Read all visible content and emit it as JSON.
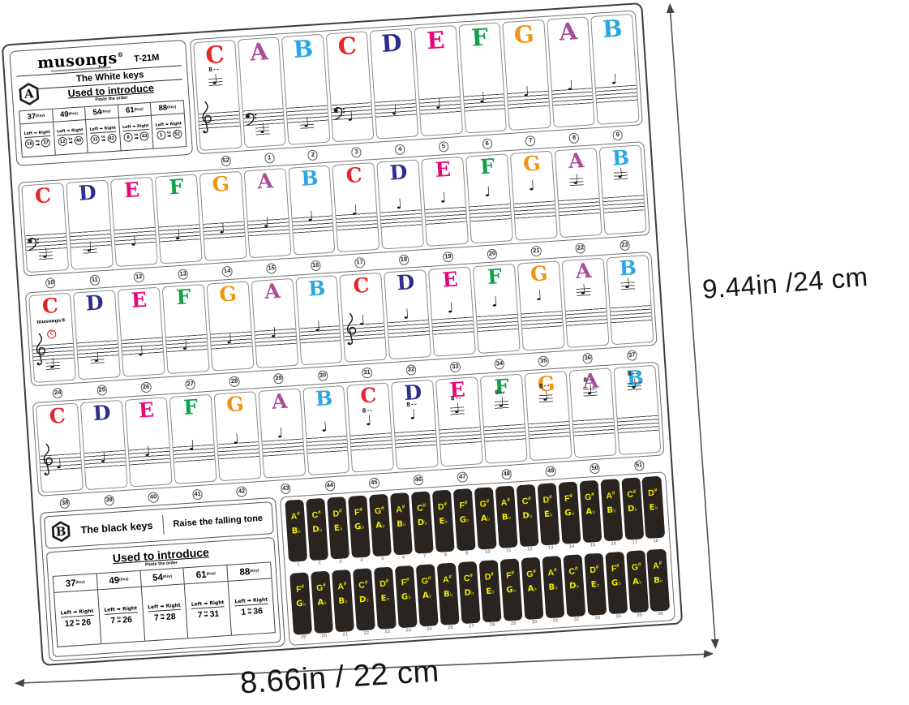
{
  "colors": {
    "C": "#e6252b",
    "D": "#2b2e8c",
    "E": "#e6077e",
    "F": "#10a04a",
    "G": "#f09413",
    "A": "#a84d97",
    "B": "#2da7e0",
    "black_key_bg": "#2a2420",
    "black_key_text": "#ece607",
    "number_grey": "#8d8d8d"
  },
  "glyphs": {
    "note": "♩",
    "ottava": "8--",
    "to": "to",
    "arrow": "➡",
    "flat": "♭"
  },
  "header_box": {
    "brand": "musongs",
    "reg": "®",
    "model": "T-21M",
    "badge": "A",
    "title": "The White keys",
    "intro": "Used to introduce",
    "paste": "Paste the order",
    "direction": "Left ➡ Right",
    "table": [
      {
        "keys": "37",
        "suffix": "(Key)",
        "from": "16",
        "to": "37"
      },
      {
        "keys": "49",
        "suffix": "(Key)",
        "from": "12",
        "to": "40"
      },
      {
        "keys": "54",
        "suffix": "(Key)",
        "from": "11",
        "to": "42"
      },
      {
        "keys": "61",
        "suffix": "(Key)",
        "from": "8",
        "to": "43"
      },
      {
        "keys": "88",
        "suffix": "(Key)",
        "from": "1",
        "to": "52"
      }
    ]
  },
  "cell_brand": {
    "text": "musongs",
    "reg": "®",
    "c": "C"
  },
  "white_rows": [
    {
      "cells": [
        {
          "l": "C",
          "v": 16,
          "clef": "treble",
          "o": true
        },
        {
          "l": "A",
          "v": 0,
          "clef": "bass"
        },
        {
          "l": "B",
          "v": 1
        },
        {
          "l": "C",
          "v": 2,
          "clef": "bass"
        },
        {
          "l": "D",
          "v": 3
        },
        {
          "l": "E",
          "v": 4
        },
        {
          "l": "F",
          "v": 5
        },
        {
          "l": "G",
          "v": 6
        },
        {
          "l": "A",
          "v": 7
        },
        {
          "l": "B",
          "v": 8
        }
      ],
      "nums": [
        "52",
        "1",
        "2",
        "3",
        "4",
        "5",
        "6",
        "7",
        "8",
        "9"
      ]
    },
    {
      "cells": [
        {
          "l": "C",
          "v": 0,
          "clef": "bass"
        },
        {
          "l": "D",
          "v": 1
        },
        {
          "l": "E",
          "v": 2
        },
        {
          "l": "F",
          "v": 3
        },
        {
          "l": "G",
          "v": 4
        },
        {
          "l": "A",
          "v": 5
        },
        {
          "l": "B",
          "v": 6
        },
        {
          "l": "C",
          "v": 7
        },
        {
          "l": "D",
          "v": 8
        },
        {
          "l": "E",
          "v": 9
        },
        {
          "l": "F",
          "v": 10
        },
        {
          "l": "G",
          "v": 11
        },
        {
          "l": "A",
          "v": 12
        },
        {
          "l": "B",
          "v": 13
        }
      ],
      "nums": [
        "10",
        "11",
        "12",
        "13",
        "14",
        "15",
        "16",
        "17",
        "18",
        "19",
        "20",
        "21",
        "22",
        "23"
      ]
    },
    {
      "cells": [
        {
          "l": "C",
          "v": 0,
          "clef": "treble",
          "brand": true
        },
        {
          "l": "D",
          "v": 1
        },
        {
          "l": "E",
          "v": 2
        },
        {
          "l": "F",
          "v": 3
        },
        {
          "l": "G",
          "v": 4
        },
        {
          "l": "A",
          "v": 5
        },
        {
          "l": "B",
          "v": 6
        },
        {
          "l": "C",
          "v": 7,
          "clef": "treble"
        },
        {
          "l": "D",
          "v": 8
        },
        {
          "l": "E",
          "v": 9
        },
        {
          "l": "F",
          "v": 10
        },
        {
          "l": "G",
          "v": 11
        },
        {
          "l": "A",
          "v": 12
        },
        {
          "l": "B",
          "v": 13
        }
      ],
      "nums": [
        "24",
        "25",
        "26",
        "27",
        "28",
        "29",
        "30",
        "31",
        "32",
        "33",
        "34",
        "35",
        "36",
        "37"
      ]
    },
    {
      "cells": [
        {
          "l": "C",
          "v": 3,
          "clef": "treble"
        },
        {
          "l": "D",
          "v": 4
        },
        {
          "l": "E",
          "v": 5
        },
        {
          "l": "F",
          "v": 6
        },
        {
          "l": "G",
          "v": 7
        },
        {
          "l": "A",
          "v": 8
        },
        {
          "l": "B",
          "v": 9
        },
        {
          "l": "C",
          "v": 10,
          "o": true
        },
        {
          "l": "D",
          "v": 11,
          "o": true
        },
        {
          "l": "E",
          "v": 12,
          "o": true
        },
        {
          "l": "F",
          "v": 13,
          "o": true
        },
        {
          "l": "G",
          "v": 14,
          "o": true
        },
        {
          "l": "A",
          "v": 15,
          "o": true
        },
        {
          "l": "B",
          "v": 16,
          "o": true
        }
      ],
      "nums": [
        "38",
        "39",
        "40",
        "41",
        "42",
        "43",
        "44",
        "45",
        "46",
        "47",
        "48",
        "49",
        "50",
        "51"
      ]
    }
  ],
  "black_box": {
    "badge": "B",
    "title_left": "The black keys",
    "title_right": "Raise the falling tone",
    "intro": "Used to introduce",
    "paste": "Paste the order",
    "direction": "Left ➡ Right",
    "table": [
      {
        "keys": "37",
        "suffix": "(Key)",
        "from": "12",
        "to": "26"
      },
      {
        "keys": "49",
        "suffix": "(Key)",
        "from": "7",
        "to": "26"
      },
      {
        "keys": "54",
        "suffix": "(Key)",
        "from": "7",
        "to": "28"
      },
      {
        "keys": "61",
        "suffix": "(Key)",
        "from": "7",
        "to": "31"
      },
      {
        "keys": "88",
        "suffix": "(Key)",
        "from": "1",
        "to": "36"
      }
    ]
  },
  "black_rows": [
    {
      "stickers": [
        {
          "s": "A#",
          "f": "Bb",
          "n": "1"
        },
        {
          "s": "C#",
          "f": "Db",
          "n": "2"
        },
        {
          "s": "D#",
          "f": "Eb",
          "n": "3"
        },
        {
          "s": "F#",
          "f": "Gb",
          "n": "4"
        },
        {
          "s": "G#",
          "f": "Ab",
          "n": "5"
        },
        {
          "s": "A#",
          "f": "Bb",
          "n": "6"
        },
        {
          "s": "C#",
          "f": "Db",
          "n": "7"
        },
        {
          "s": "D#",
          "f": "Eb",
          "n": "8"
        },
        {
          "s": "F#",
          "f": "Gb",
          "n": "9"
        },
        {
          "s": "G#",
          "f": "Ab",
          "n": "10"
        },
        {
          "s": "A#",
          "f": "Bb",
          "n": "11"
        },
        {
          "s": "C#",
          "f": "Db",
          "n": "12"
        },
        {
          "s": "D#",
          "f": "Eb",
          "n": "13"
        },
        {
          "s": "F#",
          "f": "Gb",
          "n": "14"
        },
        {
          "s": "G#",
          "f": "Ab",
          "n": "15"
        },
        {
          "s": "A#",
          "f": "Bb",
          "n": "16"
        },
        {
          "s": "C#",
          "f": "Db",
          "n": "17"
        },
        {
          "s": "D#",
          "f": "Eb",
          "n": "18"
        }
      ]
    },
    {
      "stickers": [
        {
          "s": "F#",
          "f": "Gb",
          "n": "19"
        },
        {
          "s": "G#",
          "f": "Ab",
          "n": "20"
        },
        {
          "s": "A#",
          "f": "Bb",
          "n": "21"
        },
        {
          "s": "C#",
          "f": "Db",
          "n": "22"
        },
        {
          "s": "D#",
          "f": "Eb",
          "n": "23"
        },
        {
          "s": "F#",
          "f": "Gb",
          "n": "24"
        },
        {
          "s": "G#",
          "f": "Ab",
          "n": "25"
        },
        {
          "s": "A#",
          "f": "Bb",
          "n": "26"
        },
        {
          "s": "C#",
          "f": "Db",
          "n": "27"
        },
        {
          "s": "D#",
          "f": "Eb",
          "n": "28"
        },
        {
          "s": "F#",
          "f": "Gb",
          "n": "29"
        },
        {
          "s": "G#",
          "f": "Ab",
          "n": "30"
        },
        {
          "s": "A#",
          "f": "Bb",
          "n": "31"
        },
        {
          "s": "C#",
          "f": "Db",
          "n": "32"
        },
        {
          "s": "D#",
          "f": "Eb",
          "n": "33"
        },
        {
          "s": "F#",
          "f": "Gb",
          "n": "34"
        },
        {
          "s": "G#",
          "f": "Ab",
          "n": "35"
        },
        {
          "s": "A#",
          "f": "Bb",
          "n": "36"
        }
      ]
    }
  ],
  "dimensions": {
    "height_label": "9.44in /24 cm",
    "width_label": "8.66in / 22 cm"
  }
}
